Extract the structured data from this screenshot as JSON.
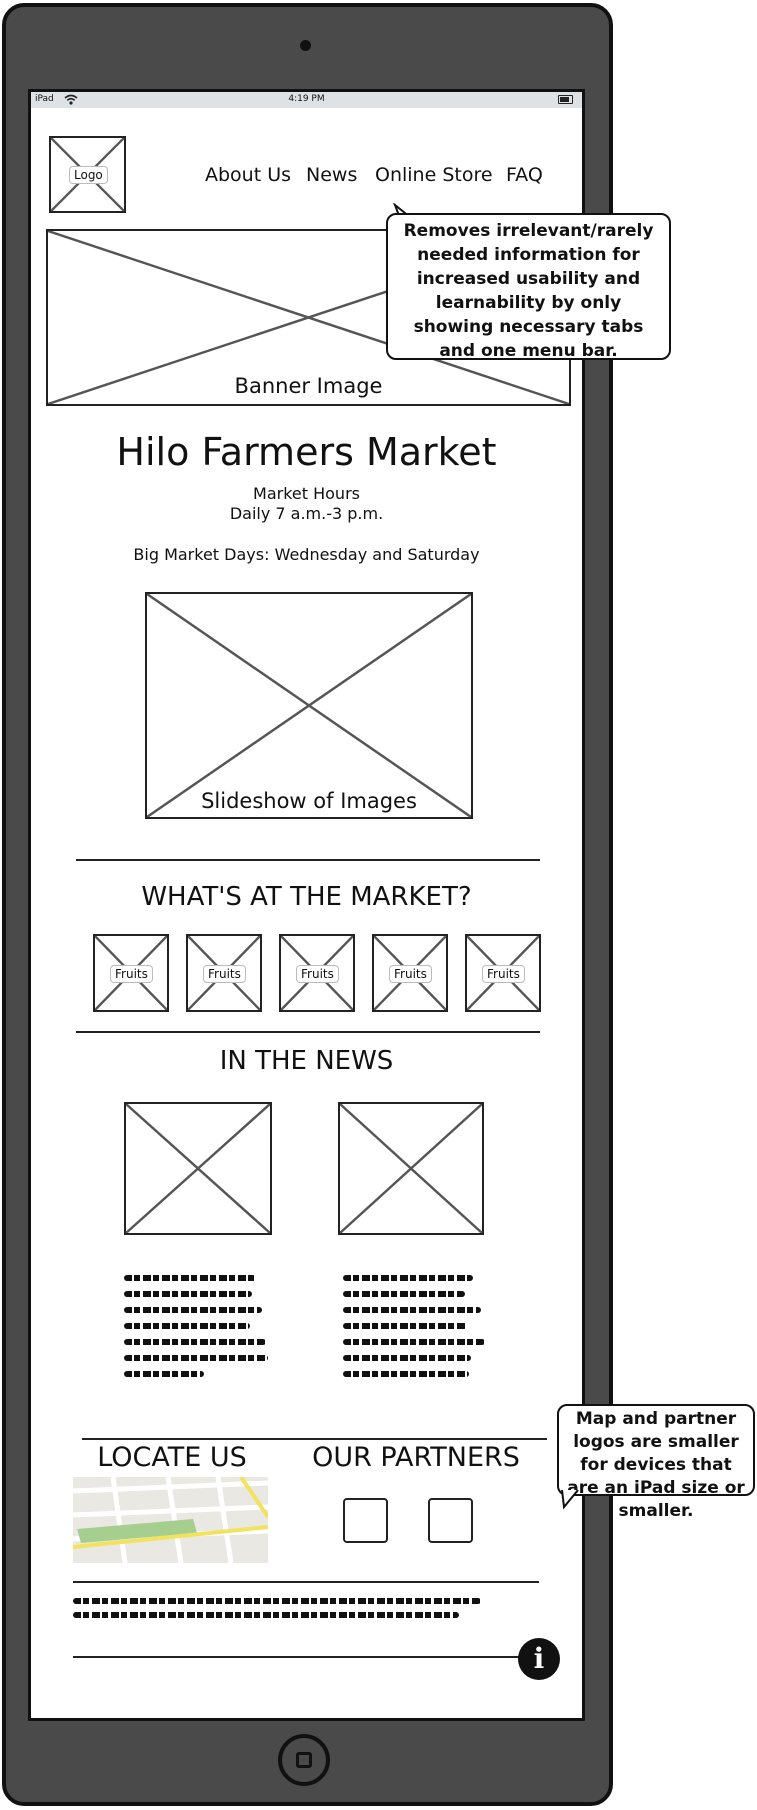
{
  "statusbar": {
    "device": "iPad",
    "time": "4:19 PM",
    "wifi_icon": "wifi-icon",
    "battery_icon": "battery-icon"
  },
  "header": {
    "logo_label": "Logo",
    "nav": [
      "About Us",
      "News",
      "Online Store",
      "FAQ"
    ]
  },
  "banner": {
    "label": "Banner Image"
  },
  "callouts": {
    "nav_note": "Removes irrelevant/rarely needed information for increased usability and learnability by only showing necessary tabs and one menu bar.",
    "map_note": "Map and partner logos are smaller for devices that are an iPad size or smaller."
  },
  "market": {
    "title": "Hilo Farmers Market",
    "hours_label": "Market Hours",
    "hours": "Daily 7 a.m.-3 p.m.",
    "big_days": "Big Market Days: Wednesday and Saturday"
  },
  "slideshow": {
    "label": "Slideshow of Images"
  },
  "whats_at_market": {
    "heading": "WHAT'S AT THE MARKET?",
    "items": [
      "Fruits",
      "Fruits",
      "Fruits",
      "Fruits",
      "Fruits"
    ]
  },
  "news": {
    "heading": "IN THE NEWS"
  },
  "locate": {
    "heading": "LOCATE US"
  },
  "partners": {
    "heading": "OUR PARTNERS"
  },
  "footer": {
    "info_icon": "info-icon",
    "info_glyph": "i"
  },
  "colors": {
    "device": "#4a4a4a",
    "statusbar": "#dfe2e5",
    "map_green": "#a6cf8f",
    "map_road_yellow": "#f2e25d"
  }
}
